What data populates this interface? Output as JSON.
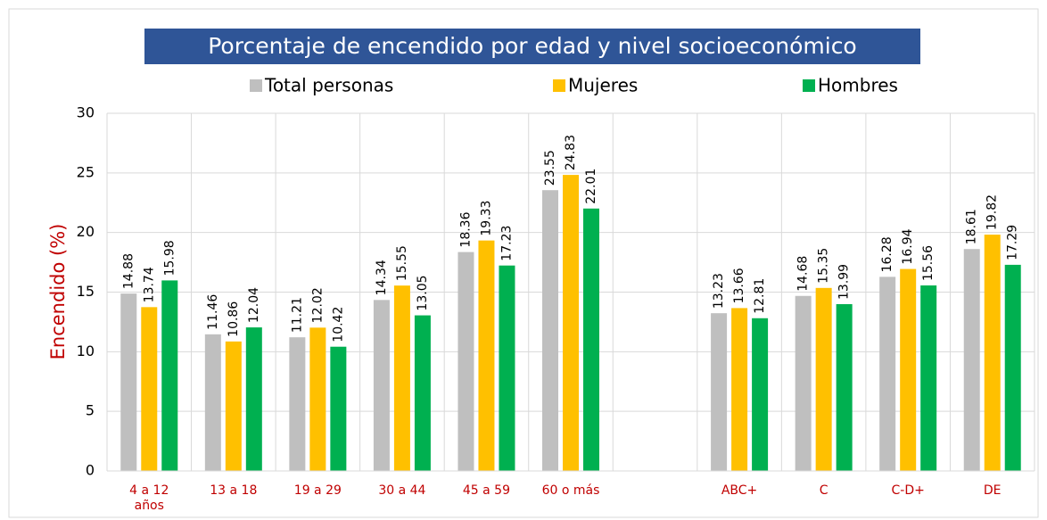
{
  "chart_data": {
    "type": "bar",
    "title": "Porcentaje de encendido por edad y nivel socioeconómico",
    "y_label": "Encendido (%)",
    "categories": [
      "4 a 12\naños",
      "13 a 18",
      "19 a 29",
      "30 a 44",
      "45 a 59",
      "60 o más",
      null,
      "ABC+",
      "C",
      "C-D+",
      "DE"
    ],
    "series": [
      {
        "name": "Total personas",
        "color": "#bfbfbf",
        "values": [
          14.88,
          11.46,
          11.21,
          14.34,
          18.36,
          23.55,
          null,
          13.23,
          14.68,
          16.28,
          18.61
        ]
      },
      {
        "name": "Mujeres",
        "color": "#ffc000",
        "values": [
          13.74,
          10.86,
          12.02,
          15.55,
          19.33,
          24.83,
          null,
          13.66,
          15.35,
          16.94,
          19.82
        ]
      },
      {
        "name": "Hombres",
        "color": "#00b050",
        "values": [
          15.98,
          12.04,
          10.42,
          13.05,
          17.23,
          22.01,
          null,
          12.81,
          13.99,
          15.56,
          17.29
        ]
      }
    ],
    "ylim": [
      0,
      30
    ],
    "yticks": [
      0,
      5,
      10,
      15,
      20,
      25,
      30
    ],
    "grid": true,
    "legend": "top"
  }
}
